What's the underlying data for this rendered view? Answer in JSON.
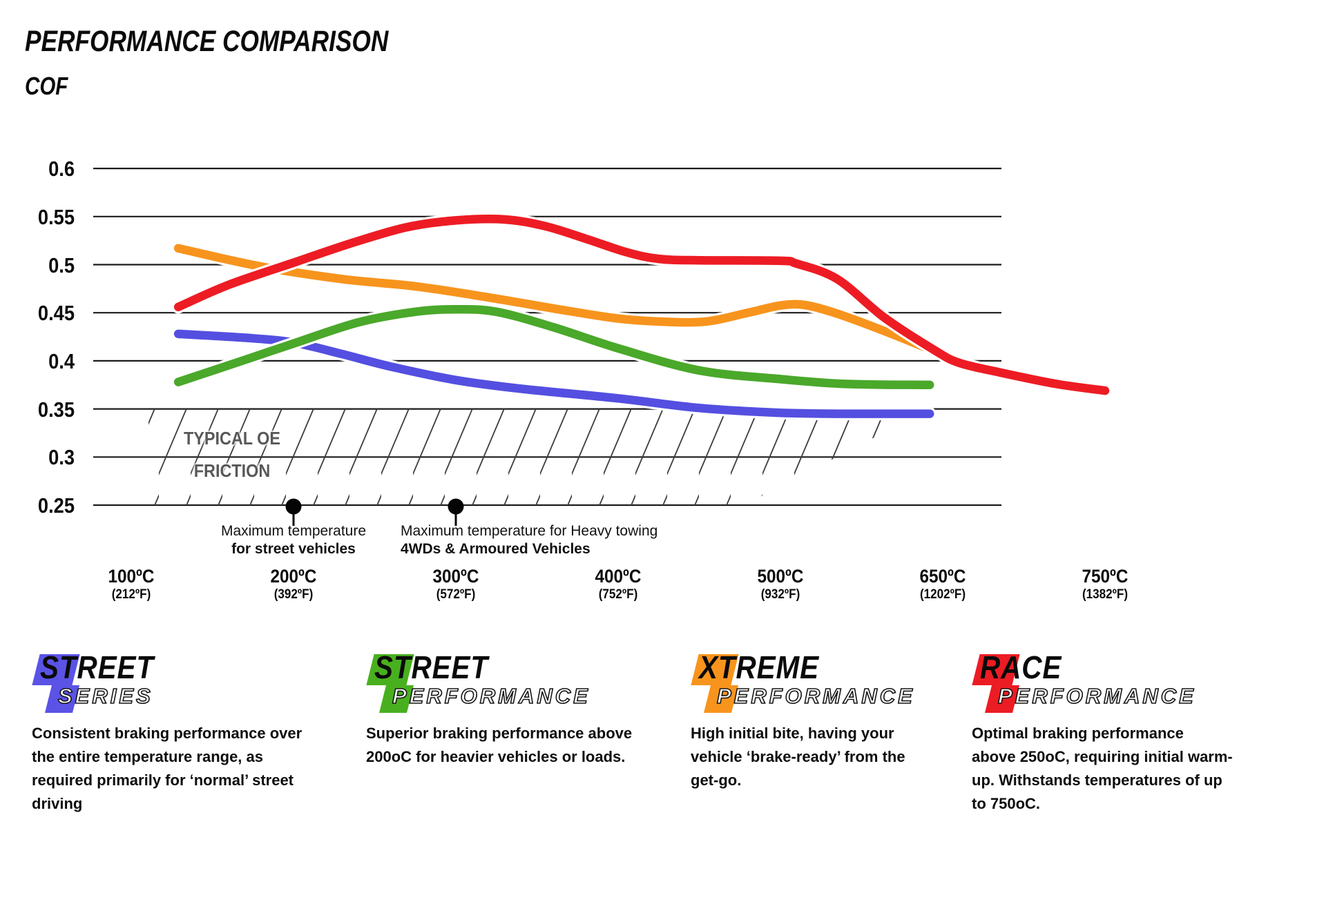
{
  "title": "PERFORMANCE COMPARISON",
  "y_axis_title": "COF",
  "chart_data": {
    "type": "line",
    "title": "PERFORMANCE COMPARISON",
    "ylabel": "COF",
    "ylim": [
      0.25,
      0.6
    ],
    "grid": true,
    "x_unit": "tick-index (0=100°C ... 6=750°C, ticks evenly spaced)",
    "y_ticks": [
      {
        "v": 0.6,
        "label": "0.6"
      },
      {
        "v": 0.55,
        "label": "0.55"
      },
      {
        "v": 0.5,
        "label": "0.5"
      },
      {
        "v": 0.45,
        "label": "0.45"
      },
      {
        "v": 0.4,
        "label": "0.4"
      },
      {
        "v": 0.35,
        "label": "0.35"
      },
      {
        "v": 0.3,
        "label": "0.3"
      },
      {
        "v": 0.25,
        "label": "0.25"
      }
    ],
    "x_ticks": [
      {
        "temp_c": 100,
        "label_c": "100ºC",
        "label_f": "(212ºF)"
      },
      {
        "temp_c": 200,
        "label_c": "200ºC",
        "label_f": "(392ºF)"
      },
      {
        "temp_c": 300,
        "label_c": "300ºC",
        "label_f": "(572ºF)"
      },
      {
        "temp_c": 400,
        "label_c": "400ºC",
        "label_f": "(752ºF)"
      },
      {
        "temp_c": 500,
        "label_c": "500ºC",
        "label_f": "(932ºF)"
      },
      {
        "temp_c": 650,
        "label_c": "650ºC",
        "label_f": "(1202ºF)"
      },
      {
        "temp_c": 750,
        "label_c": "750ºC",
        "label_f": "(1382ºF)"
      }
    ],
    "series": [
      {
        "name": "Street Series",
        "color": "#544FE0",
        "points": [
          [
            0.29,
            0.428
          ],
          [
            0.7,
            0.424
          ],
          [
            1.0,
            0.419
          ],
          [
            1.3,
            0.407
          ],
          [
            1.6,
            0.394
          ],
          [
            2.0,
            0.38
          ],
          [
            2.4,
            0.371
          ],
          [
            3.0,
            0.361
          ],
          [
            3.5,
            0.351
          ],
          [
            4.0,
            0.346
          ],
          [
            4.4,
            0.345
          ],
          [
            4.92,
            0.345
          ]
        ]
      },
      {
        "name": "Street Performance",
        "color": "#4AA82A",
        "points": [
          [
            0.29,
            0.378
          ],
          [
            0.7,
            0.401
          ],
          [
            1.0,
            0.418
          ],
          [
            1.4,
            0.44
          ],
          [
            1.75,
            0.451
          ],
          [
            2.0,
            0.4535
          ],
          [
            2.25,
            0.451
          ],
          [
            2.6,
            0.435
          ],
          [
            3.0,
            0.413
          ],
          [
            3.5,
            0.39
          ],
          [
            4.0,
            0.381
          ],
          [
            4.4,
            0.376
          ],
          [
            4.92,
            0.375
          ]
        ]
      },
      {
        "name": "Xtreme Performance",
        "color": "#F7941D",
        "points": [
          [
            0.29,
            0.517
          ],
          [
            0.8,
            0.498
          ],
          [
            1.3,
            0.485
          ],
          [
            1.75,
            0.4775
          ],
          [
            2.2,
            0.466
          ],
          [
            2.6,
            0.4545
          ],
          [
            3.0,
            0.444
          ],
          [
            3.3,
            0.4405
          ],
          [
            3.55,
            0.441
          ],
          [
            3.8,
            0.45
          ],
          [
            4.0,
            0.4575
          ],
          [
            4.15,
            0.458
          ],
          [
            4.35,
            0.449
          ],
          [
            4.64,
            0.431
          ],
          [
            4.95,
            0.41
          ]
        ]
      },
      {
        "name": "Race Performance",
        "color": "#ED1C24",
        "points": [
          [
            0.29,
            0.456
          ],
          [
            0.6,
            0.479
          ],
          [
            1.0,
            0.502
          ],
          [
            1.35,
            0.522
          ],
          [
            1.7,
            0.539
          ],
          [
            2.0,
            0.546
          ],
          [
            2.3,
            0.547
          ],
          [
            2.55,
            0.54
          ],
          [
            2.8,
            0.527
          ],
          [
            3.05,
            0.513
          ],
          [
            3.25,
            0.506
          ],
          [
            3.5,
            0.5045
          ],
          [
            4.0,
            0.504
          ],
          [
            4.1,
            0.501
          ],
          [
            4.35,
            0.485
          ],
          [
            4.64,
            0.445
          ],
          [
            4.95,
            0.411
          ],
          [
            5.1,
            0.398
          ],
          [
            5.35,
            0.388
          ],
          [
            5.7,
            0.376
          ],
          [
            6.0,
            0.369
          ]
        ]
      }
    ],
    "oe_band": {
      "label_line1": "TYPICAL OE",
      "label_line2": "FRICTION",
      "cof_range": [
        0.25,
        0.35
      ]
    },
    "annotations": [
      {
        "tick": 1,
        "align": "center",
        "line1": "Maximum temperature",
        "line2": "for street vehicles"
      },
      {
        "tick": 2,
        "align": "left",
        "line1": "Maximum temperature for Heavy towing",
        "line2": "4WDs & Armoured Vehicles"
      }
    ]
  },
  "legend": [
    {
      "word_top": "STREET",
      "word_bottom": "SERIES",
      "color": "#5A53E5",
      "description_lines": [
        "Consistent braking performance over",
        "the entire temperature range, as",
        "required primarily for ‘normal’ street",
        "driving"
      ]
    },
    {
      "word_top": "STREET",
      "word_bottom": "PERFORMANCE",
      "color": "#48B01F",
      "description_lines": [
        "Superior braking performance above",
        "200oC for heavier vehicles or loads."
      ]
    },
    {
      "word_top": "XTREME",
      "word_bottom": "PERFORMANCE",
      "color": "#F7941D",
      "description_lines": [
        "High initial bite, having your",
        "vehicle ‘brake-ready’ from the",
        "get-go."
      ]
    },
    {
      "word_top": "RACE",
      "word_bottom": "PERFORMANCE",
      "color": "#EC1C24",
      "description_lines": [
        "Optimal braking performance",
        "above 250oC, requiring initial warm-",
        "up. Withstands temperatures of up",
        "to 750oC."
      ]
    }
  ]
}
